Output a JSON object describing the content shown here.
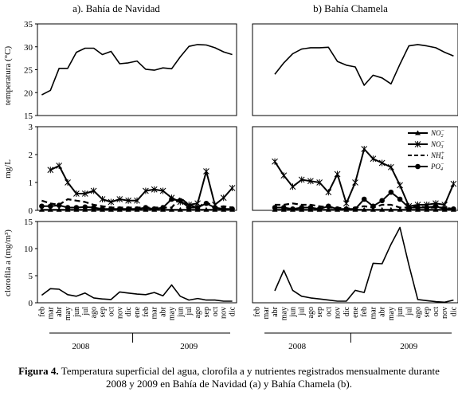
{
  "chart_data": [
    {
      "type": "line",
      "panel": "a",
      "title": "a).  Bahía de Navidad",
      "ylabel": "temperatura (°C)",
      "ylim": [
        15,
        35
      ],
      "yticks": [
        "15",
        "20",
        "25",
        "30",
        "35"
      ],
      "x": [
        "feb",
        "mar",
        "abr",
        "may",
        "jun",
        "jul",
        "ago",
        "sep",
        "oct",
        "nov",
        "dic",
        "ene",
        "feb",
        "mar",
        "abr",
        "may",
        "jun",
        "jul",
        "ago",
        "sep",
        "oct",
        "nov",
        "dic"
      ],
      "series": [
        {
          "values": [
            19.5,
            20.5,
            25.3,
            25.3,
            28.8,
            29.7,
            29.7,
            28.3,
            29.0,
            26.3,
            26.5,
            26.9,
            25.1,
            24.9,
            25.4,
            25.2,
            27.8,
            30.1,
            30.5,
            30.4,
            29.8,
            28.9,
            28.3
          ]
        }
      ]
    },
    {
      "type": "line",
      "panel": "b",
      "title": "b)  Bahía Chamela",
      "ylim": [
        15,
        35
      ],
      "x": [
        "feb",
        "mar",
        "abr",
        "may",
        "jun",
        "jul",
        "ago",
        "sep",
        "oct",
        "nov",
        "dic",
        "ene",
        "feb",
        "mar",
        "abr",
        "may",
        "jun",
        "jul",
        "ago",
        "sep",
        "oct",
        "nov",
        "dic"
      ],
      "series": [
        {
          "values": [
            null,
            null,
            24.0,
            26.5,
            28.5,
            29.5,
            29.8,
            29.8,
            29.9,
            26.8,
            26.0,
            25.6,
            21.6,
            23.8,
            23.2,
            21.9,
            26.2,
            30.2,
            30.5,
            30.2,
            29.8,
            28.8,
            28.0
          ]
        }
      ]
    },
    {
      "type": "line",
      "panel": "a",
      "ylabel": "mg/L",
      "ylim": [
        0,
        3
      ],
      "yticks": [
        "0",
        "1",
        "2",
        "3"
      ],
      "x": [
        "feb",
        "mar",
        "abr",
        "may",
        "jun",
        "jul",
        "ago",
        "sep",
        "oct",
        "nov",
        "dic",
        "ene",
        "feb",
        "mar",
        "abr",
        "may",
        "jun",
        "jul",
        "ago",
        "sep",
        "oct",
        "nov",
        "dic"
      ],
      "series": [
        {
          "name": "NO2-",
          "marker": "triangle",
          "dash": "solid",
          "values": [
            0.02,
            0.02,
            0.02,
            0.02,
            0.02,
            0.02,
            0.02,
            0.02,
            0.02,
            0.02,
            0.02,
            0.02,
            0.02,
            0.02,
            0.02,
            0.02,
            0.02,
            0.02,
            0.02,
            0.02,
            0.02,
            0.02,
            0.02
          ]
        },
        {
          "name": "NO3-",
          "marker": "star",
          "dash": "solid",
          "values": [
            null,
            1.45,
            1.6,
            1.0,
            0.6,
            0.6,
            0.7,
            0.4,
            0.3,
            0.4,
            0.35,
            0.35,
            0.7,
            0.75,
            0.7,
            0.45,
            0.3,
            0.2,
            0.25,
            1.4,
            0.2,
            0.45,
            0.8
          ]
        },
        {
          "name": "NH4+",
          "marker": "none",
          "dash": "dashed",
          "values": [
            0.35,
            0.25,
            0.2,
            0.4,
            0.35,
            0.3,
            0.2,
            0.15,
            0.1,
            0.1,
            0.1,
            0.1,
            0.1,
            0.1,
            0.1,
            0.1,
            0.45,
            0.2,
            0.1,
            0.3,
            0.1,
            0.15,
            0.1
          ]
        },
        {
          "name": "PO4-",
          "marker": "circle",
          "dash": "solid",
          "values": [
            0.15,
            0.15,
            0.18,
            0.1,
            0.1,
            0.12,
            0.1,
            0.05,
            0.05,
            0.05,
            0.05,
            0.05,
            0.1,
            0.05,
            0.1,
            0.4,
            0.35,
            0.1,
            0.1,
            0.25,
            0.1,
            0.05,
            0.05
          ]
        }
      ],
      "legend": "top-right"
    },
    {
      "type": "line",
      "panel": "b",
      "ylim": [
        0,
        3
      ],
      "x": [
        "feb",
        "mar",
        "abr",
        "may",
        "jun",
        "jul",
        "ago",
        "sep",
        "oct",
        "nov",
        "dic",
        "ene",
        "feb",
        "mar",
        "abr",
        "may",
        "jun",
        "jul",
        "ago",
        "sep",
        "oct",
        "nov",
        "dic"
      ],
      "series": [
        {
          "name": "NO2-",
          "values": [
            null,
            null,
            0.02,
            0.02,
            0.02,
            0.02,
            0.02,
            0.02,
            0.02,
            0.02,
            0.02,
            0.02,
            0.02,
            0.02,
            0.02,
            0.02,
            0.02,
            0.02,
            0.02,
            0.02,
            0.02,
            0.02,
            0.02
          ]
        },
        {
          "name": "NO3-",
          "values": [
            null,
            null,
            1.75,
            1.25,
            0.85,
            1.1,
            1.05,
            1.0,
            0.65,
            1.3,
            0.25,
            1.0,
            2.2,
            1.85,
            1.7,
            1.55,
            0.9,
            0.15,
            0.2,
            0.2,
            0.25,
            0.2,
            0.95
          ]
        },
        {
          "name": "NH4+",
          "values": [
            null,
            null,
            0.2,
            0.2,
            0.25,
            0.2,
            0.2,
            0.15,
            0.1,
            0.1,
            0.05,
            0.1,
            0.15,
            0.1,
            0.2,
            0.2,
            0.1,
            0.1,
            0.15,
            0.1,
            0.1,
            0.1,
            0.05
          ]
        },
        {
          "name": "PO4-",
          "values": [
            null,
            null,
            0.1,
            0.1,
            0.05,
            0.1,
            0.1,
            0.05,
            0.15,
            0.05,
            0.05,
            0.05,
            0.4,
            0.15,
            0.35,
            0.65,
            0.4,
            0.1,
            0.1,
            0.1,
            0.15,
            0.05,
            0.05
          ]
        }
      ]
    },
    {
      "type": "line",
      "panel": "a",
      "ylabel": "clorofila a  (mg/m³)",
      "ylim": [
        0,
        15
      ],
      "yticks": [
        "0",
        "5",
        "10",
        "15"
      ],
      "x": [
        "feb",
        "mar",
        "abr",
        "may",
        "jun",
        "jul",
        "ago",
        "sep",
        "oct",
        "nov",
        "dic",
        "ene",
        "feb",
        "mar",
        "abr",
        "may",
        "jun",
        "jul",
        "ago",
        "sep",
        "oct",
        "nov",
        "dic"
      ],
      "series": [
        {
          "values": [
            1.4,
            2.6,
            2.5,
            1.5,
            1.2,
            1.8,
            0.9,
            0.7,
            0.6,
            2.0,
            1.8,
            1.6,
            1.5,
            1.9,
            1.3,
            3.3,
            1.2,
            0.5,
            0.8,
            0.5,
            0.5,
            0.3,
            0.3
          ]
        }
      ]
    },
    {
      "type": "line",
      "panel": "b",
      "ylim": [
        0,
        15
      ],
      "x": [
        "feb",
        "mar",
        "abr",
        "may",
        "jun",
        "jul",
        "ago",
        "sep",
        "oct",
        "nov",
        "dic",
        "ene",
        "feb",
        "mar",
        "abr",
        "may",
        "jun",
        "jul",
        "ago",
        "sep",
        "oct",
        "nov",
        "dic"
      ],
      "series": [
        {
          "values": [
            null,
            null,
            2.2,
            6.0,
            2.3,
            1.2,
            0.9,
            0.7,
            0.5,
            0.3,
            0.3,
            2.3,
            1.9,
            7.3,
            7.2,
            10.8,
            13.9,
            7.0,
            0.6,
            0.4,
            0.2,
            0.1,
            0.5
          ]
        }
      ]
    }
  ],
  "years": [
    "2008",
    "2009"
  ],
  "legend_items": [
    {
      "base": "NO",
      "sub": "2",
      "sup": "−",
      "marker": "triangle",
      "dash": "solid"
    },
    {
      "base": "NO",
      "sub": "3",
      "sup": "−",
      "marker": "star",
      "dash": "solid"
    },
    {
      "base": "NH",
      "sub": "4",
      "sup": "+",
      "marker": "none",
      "dash": "dashed"
    },
    {
      "base": "PO",
      "sub": "4",
      "sup": "−",
      "marker": "circle",
      "dash": "solid"
    }
  ],
  "caption": {
    "label": "Figura 4.",
    "text_line1": " Temperatura superficial del agua, clorofila a y nutrientes registrados mensualmente durante",
    "text_line2": "2008 y 2009 en Bahía de Navidad (a) y Bahía Chamela (b)."
  }
}
